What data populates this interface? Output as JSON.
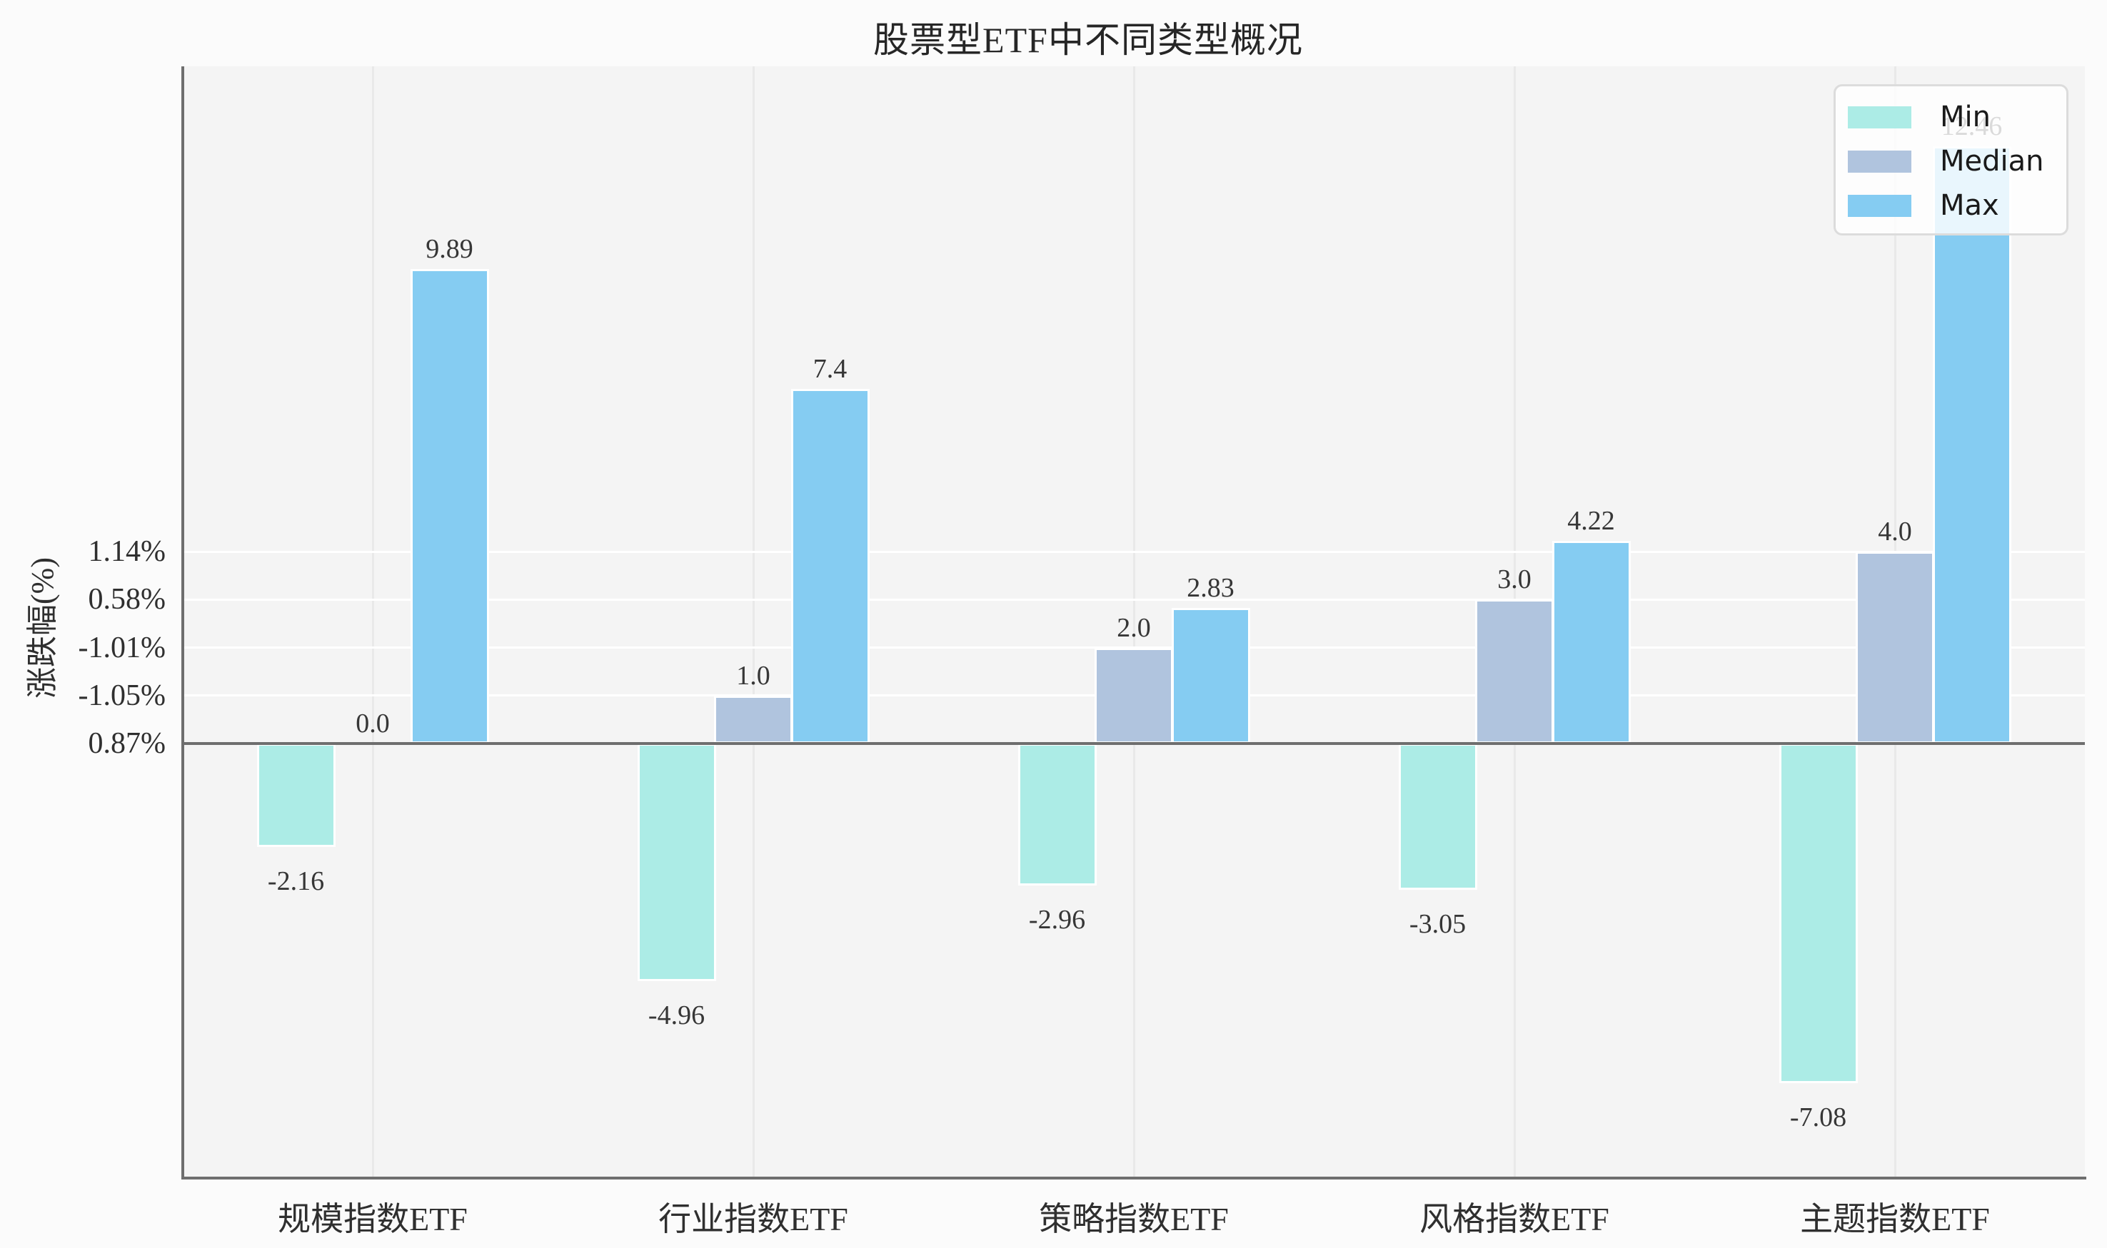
{
  "figure": {
    "title": "股票型ETF中不同类型概况",
    "y_axis_label": "涨跌幅(%)"
  },
  "chart_data": {
    "type": "bar",
    "title": "股票型ETF中不同类型概况",
    "xlabel": "",
    "ylabel": "涨跌幅(%)",
    "categories": [
      "规模指数ETF",
      "行业指数ETF",
      "策略指数ETF",
      "风格指数ETF",
      "主题指数ETF"
    ],
    "series": [
      {
        "name": "Min",
        "color": "#ACECE6",
        "values": [
          -2.16,
          -4.96,
          -2.96,
          -3.05,
          -7.08
        ],
        "labels": [
          "-2.16",
          "-4.96",
          "-2.96",
          "-3.05",
          "-7.08"
        ]
      },
      {
        "name": "Median",
        "color": "#B0C4DE",
        "values": [
          0.0,
          1.0,
          2.0,
          3.0,
          4.0
        ],
        "labels": [
          "0.0",
          "1.0",
          "2.0",
          "3.0",
          "4.0"
        ]
      },
      {
        "name": "Max",
        "color": "#85CCF2",
        "values": [
          9.89,
          7.4,
          2.83,
          4.22,
          12.46
        ],
        "labels": [
          "9.89",
          "7.4",
          "2.83",
          "4.22",
          "12.46"
        ]
      }
    ],
    "y_ticks": [
      {
        "label": "0.87%",
        "unit": 0
      },
      {
        "label": "-1.05%",
        "unit": 1
      },
      {
        "label": "-1.01%",
        "unit": 2
      },
      {
        "label": "0.58%",
        "unit": 3
      },
      {
        "label": "1.14%",
        "unit": 4
      }
    ],
    "legend": {
      "position": "upper right",
      "entries": [
        "Min",
        "Median",
        "Max"
      ]
    },
    "grid": true,
    "baseline_value": 0
  },
  "colors": {
    "figure_bg": "#fbfbfb",
    "plot_bg": "#f4f4f4",
    "spine": "#6e6e6e",
    "grid_horizontal": "#ffffff",
    "grid_vertical": "#e9e9e9",
    "min_series": "#ACECE6",
    "median_series": "#B0C4DE",
    "max_series": "#85CCF2"
  }
}
